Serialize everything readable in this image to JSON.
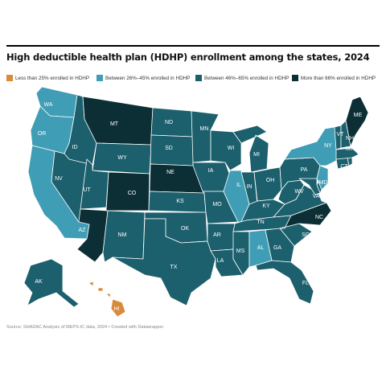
{
  "title": "High deductible health plan (HDHP) enrollment among the states, 2024",
  "legend": [
    {
      "key": "lt25",
      "label": "Less than 25% enrolled in HDHP",
      "color": "#d98a3a"
    },
    {
      "key": "b26_45",
      "label": "Between 26%–45% enrolled in HDHP",
      "color": "#3f9db5"
    },
    {
      "key": "b46_65",
      "label": "Between 46%–65% enrolled in HDHP",
      "color": "#1c5f6d"
    },
    {
      "key": "gt66",
      "label": "More than 66% enrolled in HDHP",
      "color": "#0b2f35"
    }
  ],
  "states": [
    {
      "abbr": "WA",
      "category": "b26_45"
    },
    {
      "abbr": "OR",
      "category": "b26_45"
    },
    {
      "abbr": "CA",
      "category": "b26_45"
    },
    {
      "abbr": "NV",
      "category": "b46_65"
    },
    {
      "abbr": "ID",
      "category": "b46_65"
    },
    {
      "abbr": "MT",
      "category": "gt66"
    },
    {
      "abbr": "WY",
      "category": "b46_65"
    },
    {
      "abbr": "UT",
      "category": "b46_65"
    },
    {
      "abbr": "AZ",
      "category": "gt66"
    },
    {
      "abbr": "CO",
      "category": "gt66"
    },
    {
      "abbr": "NM",
      "category": "b46_65"
    },
    {
      "abbr": "ND",
      "category": "b46_65"
    },
    {
      "abbr": "SD",
      "category": "b46_65"
    },
    {
      "abbr": "NE",
      "category": "gt66"
    },
    {
      "abbr": "KS",
      "category": "b46_65"
    },
    {
      "abbr": "OK",
      "category": "b46_65"
    },
    {
      "abbr": "TX",
      "category": "b46_65"
    },
    {
      "abbr": "MN",
      "category": "b46_65"
    },
    {
      "abbr": "IA",
      "category": "b46_65"
    },
    {
      "abbr": "MO",
      "category": "b46_65"
    },
    {
      "abbr": "AR",
      "category": "b46_65"
    },
    {
      "abbr": "LA",
      "category": "b46_65"
    },
    {
      "abbr": "WI",
      "category": "b46_65"
    },
    {
      "abbr": "IL",
      "category": "b26_45"
    },
    {
      "abbr": "MI",
      "category": "b46_65"
    },
    {
      "abbr": "IN",
      "category": "b46_65"
    },
    {
      "abbr": "OH",
      "category": "b46_65"
    },
    {
      "abbr": "KY",
      "category": "b46_65"
    },
    {
      "abbr": "TN",
      "category": "b46_65"
    },
    {
      "abbr": "MS",
      "category": "b46_65"
    },
    {
      "abbr": "AL",
      "category": "b26_45"
    },
    {
      "abbr": "GA",
      "category": "b46_65"
    },
    {
      "abbr": "FL",
      "category": "b46_65"
    },
    {
      "abbr": "SC",
      "category": "b46_65"
    },
    {
      "abbr": "NC",
      "category": "gt66"
    },
    {
      "abbr": "VA",
      "category": "b46_65"
    },
    {
      "abbr": "WV",
      "category": "b46_65"
    },
    {
      "abbr": "PA",
      "category": "b46_65"
    },
    {
      "abbr": "NY",
      "category": "b26_45"
    },
    {
      "abbr": "VT",
      "category": "b46_65"
    },
    {
      "abbr": "NH",
      "category": "b46_65"
    },
    {
      "abbr": "ME",
      "category": "gt66"
    },
    {
      "abbr": "MA",
      "category": "b46_65"
    },
    {
      "abbr": "RI",
      "category": "b46_65"
    },
    {
      "abbr": "CT",
      "category": "b46_65"
    },
    {
      "abbr": "NJ",
      "category": "b26_45"
    },
    {
      "abbr": "DE",
      "category": "b46_65"
    },
    {
      "abbr": "MD",
      "category": "b46_65"
    },
    {
      "abbr": "AK",
      "category": "b46_65"
    },
    {
      "abbr": "HI",
      "category": "lt25"
    }
  ],
  "footer": "Source: SHADAC Analysis of MEPS-IC data, 2024 • Created with Datawrapper"
}
